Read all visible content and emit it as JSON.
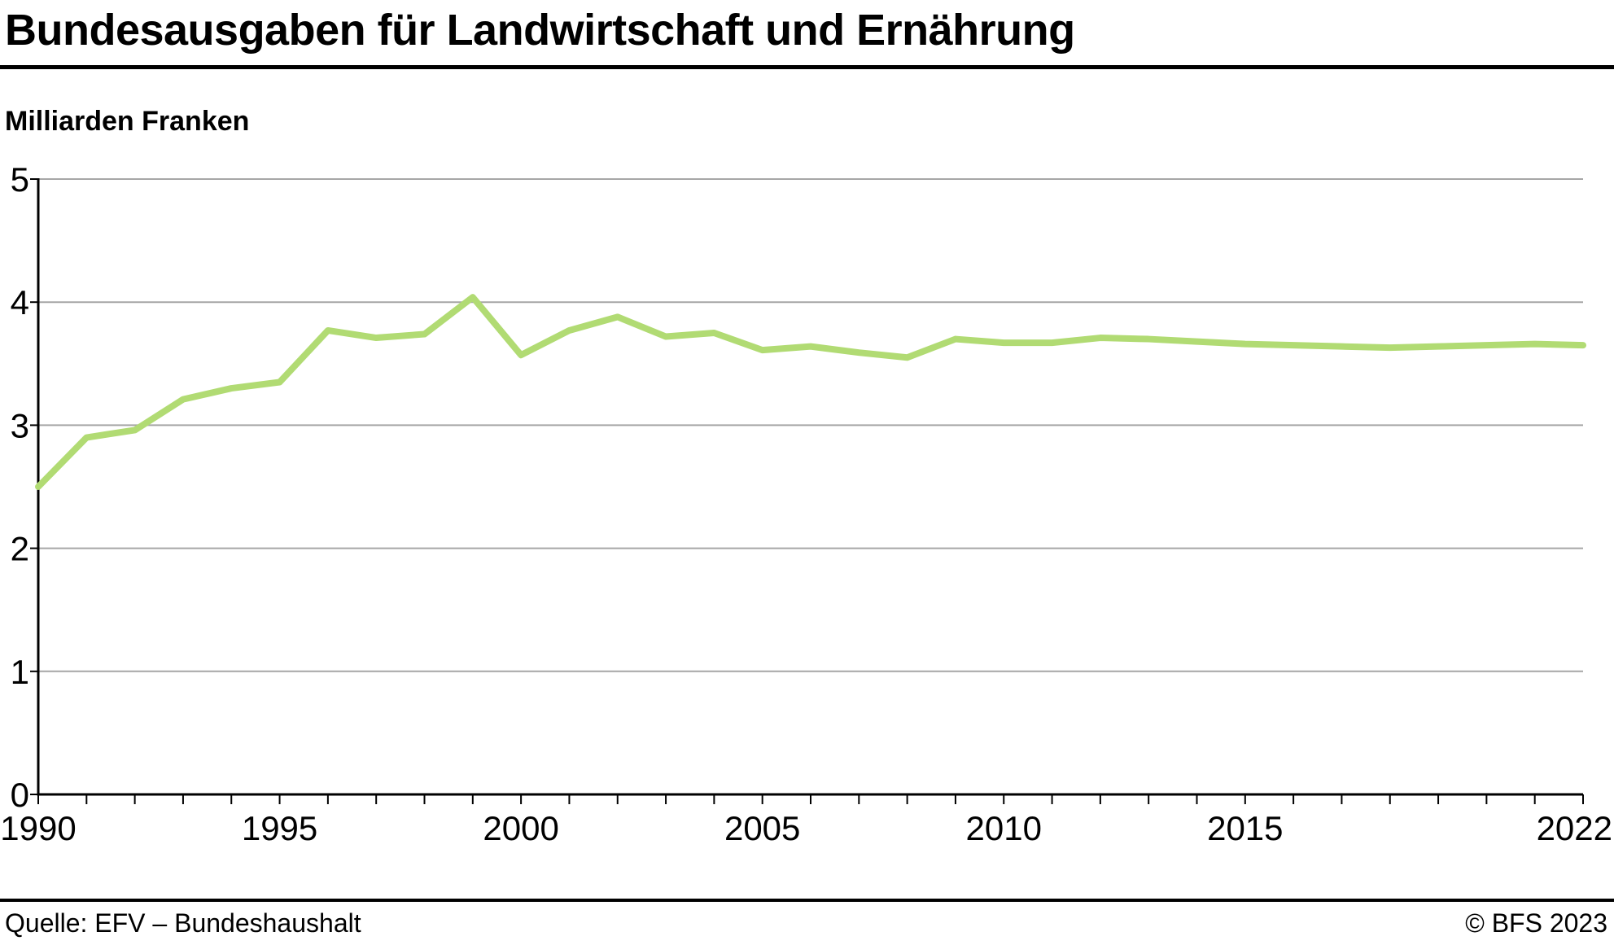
{
  "header": {
    "title": "Bundesausgaben für Landwirtschaft und Ernährung",
    "unit_label": "Milliarden Franken"
  },
  "footer": {
    "source": "Quelle: EFV – Bundeshaushalt",
    "copyright": "© BFS 2023"
  },
  "colors": {
    "line": "#b1db73",
    "grid": "#a6a6a6",
    "axis": "#000000"
  },
  "chart_data": {
    "type": "line",
    "title": "Bundesausgaben für Landwirtschaft und Ernährung",
    "xlabel": "",
    "ylabel": "Milliarden Franken",
    "ylim": [
      0,
      5
    ],
    "yticks": [
      0,
      1,
      2,
      3,
      4,
      5
    ],
    "xticks_labeled": [
      1990,
      1995,
      2000,
      2005,
      2010,
      2015,
      2022
    ],
    "grid": "horizontal",
    "legend": "none",
    "x": [
      1990,
      1991,
      1992,
      1993,
      1994,
      1995,
      1996,
      1997,
      1998,
      1999,
      2000,
      2001,
      2002,
      2003,
      2004,
      2005,
      2006,
      2007,
      2008,
      2009,
      2010,
      2011,
      2012,
      2013,
      2014,
      2015,
      2016,
      2017,
      2018,
      2019,
      2020,
      2021,
      2022
    ],
    "values": [
      2.5,
      2.9,
      2.96,
      3.21,
      3.3,
      3.35,
      3.77,
      3.71,
      3.74,
      4.04,
      3.57,
      3.77,
      3.88,
      3.72,
      3.75,
      3.61,
      3.64,
      3.59,
      3.55,
      3.7,
      3.67,
      3.67,
      3.71,
      3.7,
      3.68,
      3.66,
      3.65,
      3.64,
      3.63,
      3.64,
      3.65,
      3.66,
      3.65
    ]
  }
}
